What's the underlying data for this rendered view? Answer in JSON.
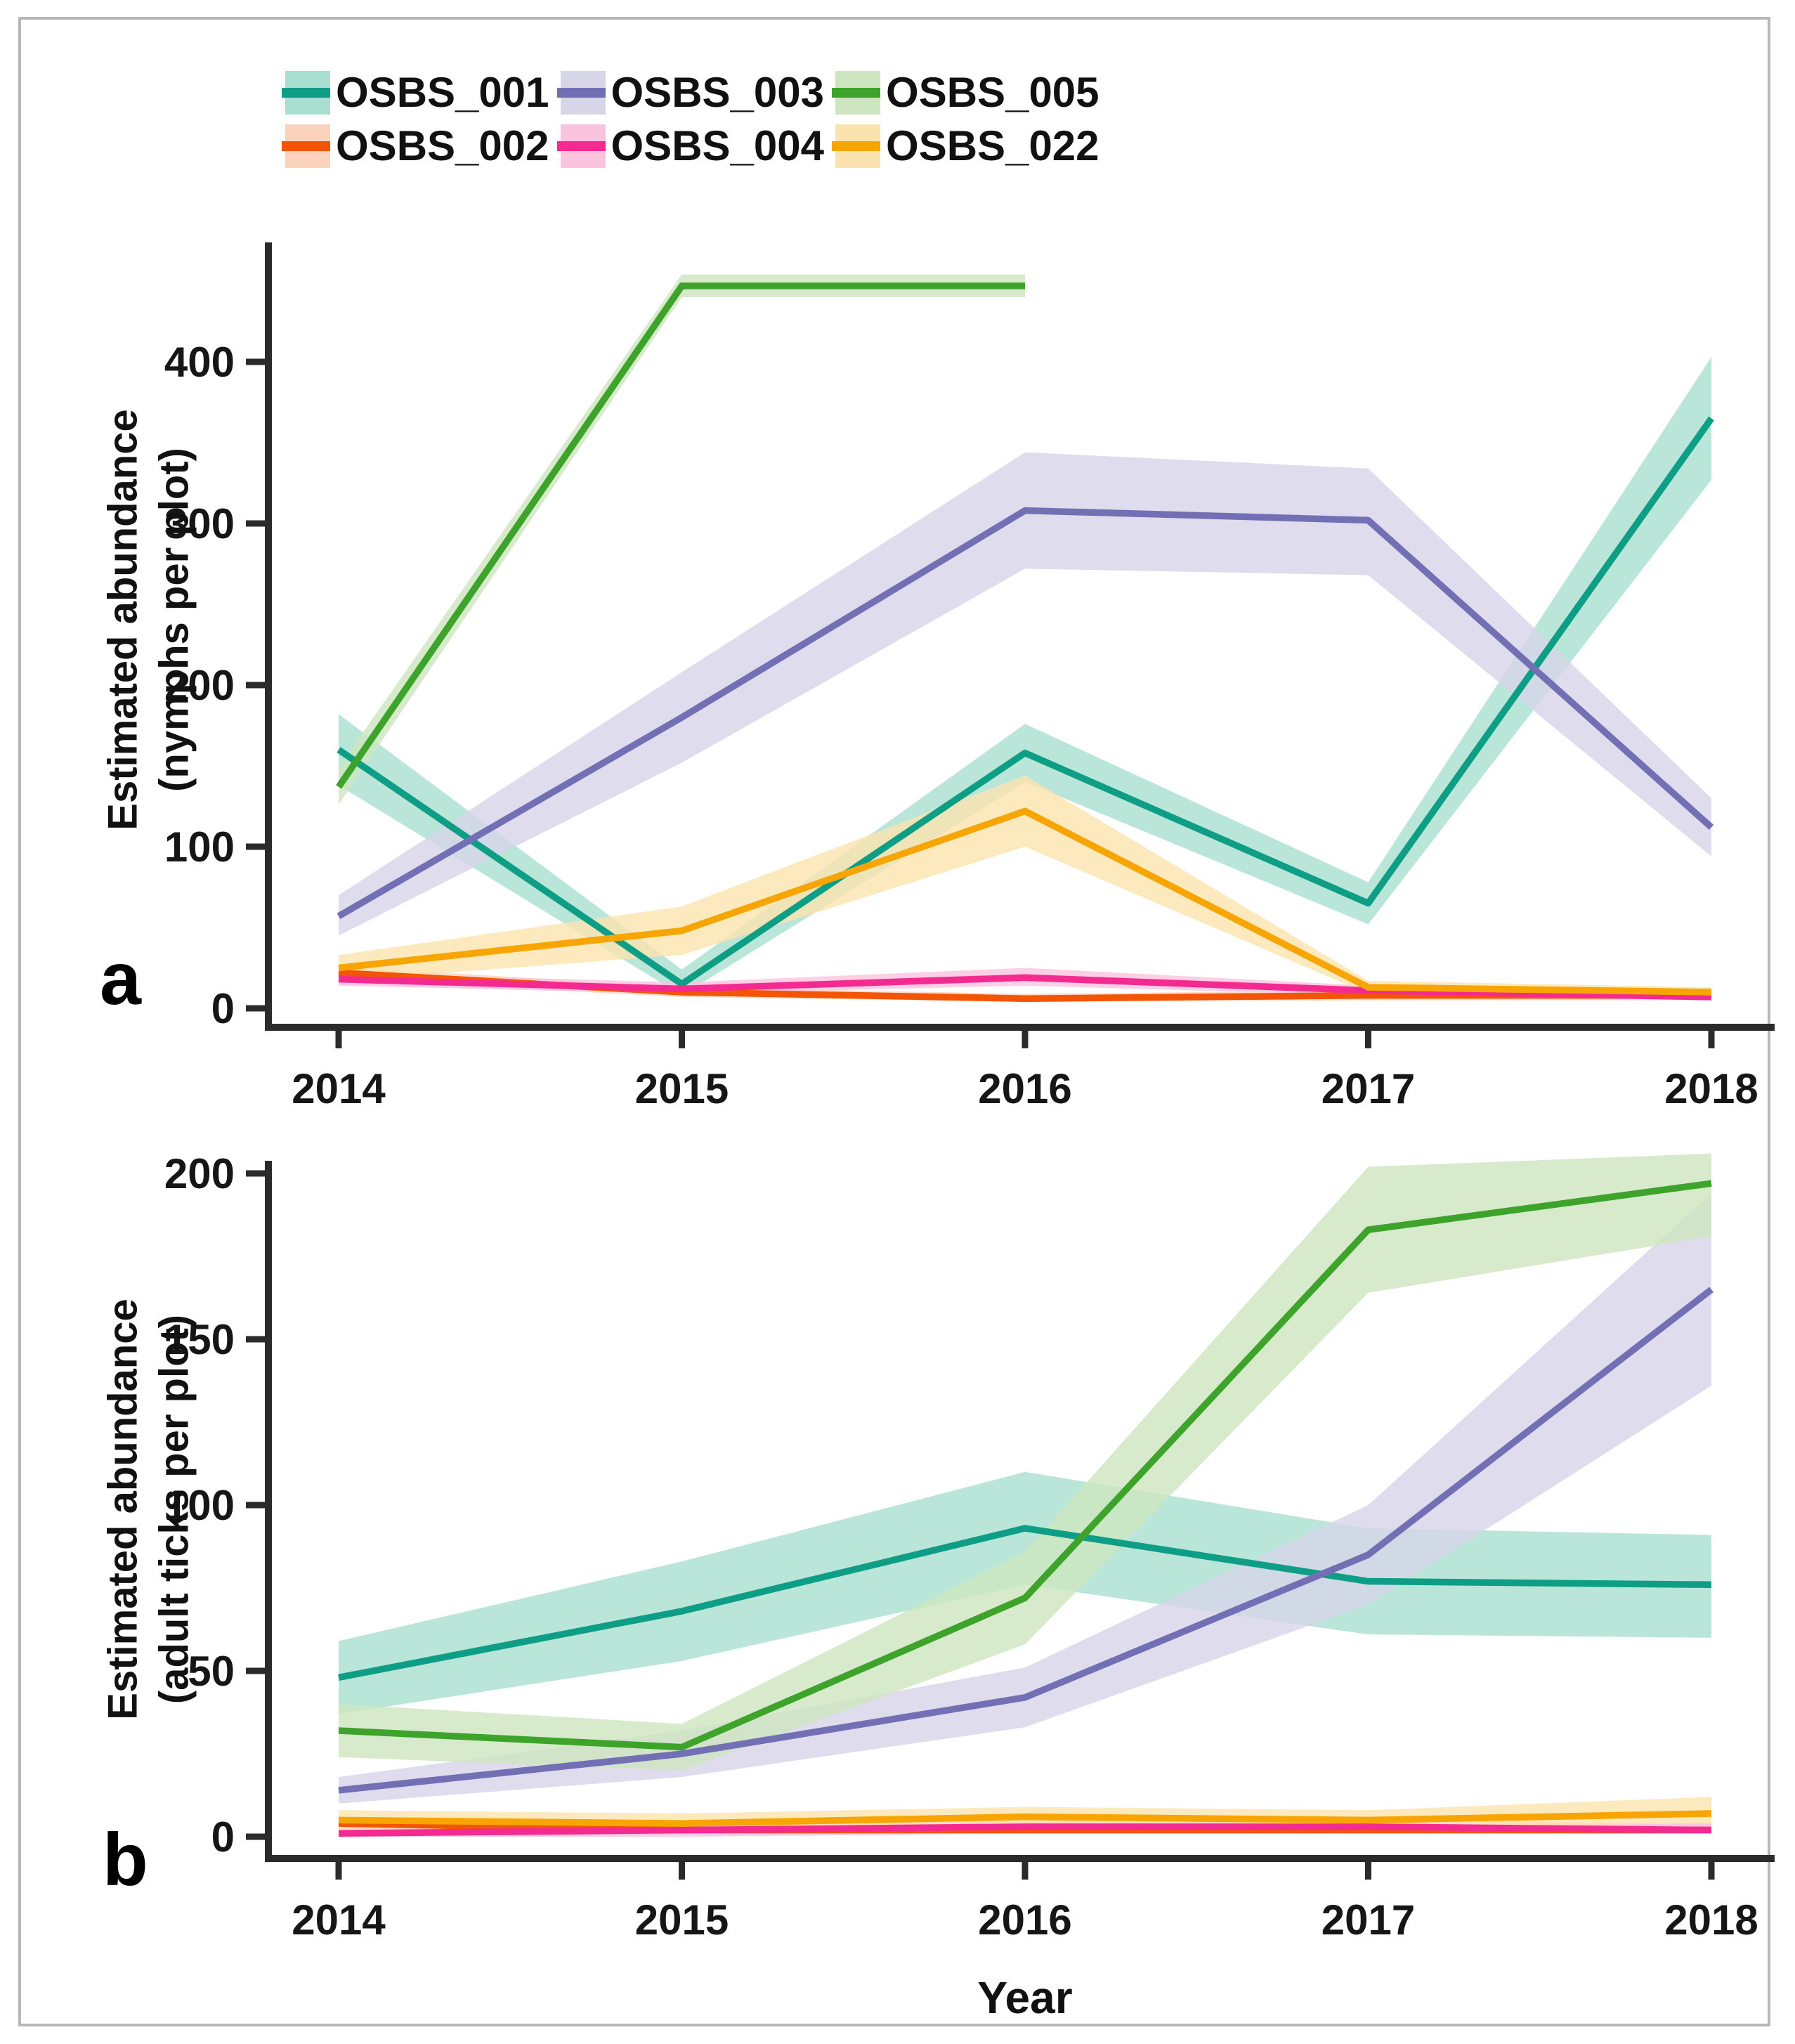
{
  "figure": {
    "background": "#ffffff",
    "frame_color": "#b8b8b8",
    "axis_color": "#2b2b2b",
    "text_color": "#111111"
  },
  "legend": {
    "position": "top",
    "items": [
      {
        "label": "OSBS_001",
        "line_color": "#0d9e85",
        "ribbon_color": "#a9dfd0"
      },
      {
        "label": "OSBS_002",
        "line_color": "#f25505",
        "ribbon_color": "#fbd2bb"
      },
      {
        "label": "OSBS_003",
        "line_color": "#736fb4",
        "ribbon_color": "#d7d5e8"
      },
      {
        "label": "OSBS_004",
        "line_color": "#f32b90",
        "ribbon_color": "#fbc3de"
      },
      {
        "label": "OSBS_005",
        "line_color": "#3ea32a",
        "ribbon_color": "#cde6bf"
      },
      {
        "label": "OSBS_022",
        "line_color": "#f7a503",
        "ribbon_color": "#fbe3ae"
      }
    ]
  },
  "chart_data": [
    {
      "type": "line",
      "panel_label": "a",
      "ylabel_line1": "Estimated abundance",
      "ylabel_line2": "(nymphs per plot)",
      "x": [
        2014,
        2015,
        2016,
        2017,
        2018
      ],
      "yticks": [
        0,
        100,
        200,
        300,
        400
      ],
      "ylim": [
        0,
        475
      ],
      "grid": false,
      "legend_position": "top",
      "series": [
        {
          "name": "OSBS_001",
          "color": "#0d9e85",
          "ribbon": "#a9dfd0",
          "values": [
            160,
            15,
            158,
            65,
            365
          ],
          "low": [
            138,
            8,
            140,
            52,
            327
          ],
          "high": [
            182,
            24,
            176,
            78,
            403
          ]
        },
        {
          "name": "OSBS_002",
          "color": "#f25505",
          "ribbon": "#fbd2bb",
          "values": [
            22,
            10,
            6,
            8,
            8
          ],
          "low": [
            18,
            7,
            4,
            5,
            5
          ],
          "high": [
            26,
            13,
            9,
            11,
            11
          ]
        },
        {
          "name": "OSBS_003",
          "color": "#736fb4",
          "ribbon": "#d7d5e8",
          "values": [
            57,
            180,
            308,
            302,
            112
          ],
          "low": [
            45,
            152,
            272,
            268,
            94
          ],
          "high": [
            70,
            208,
            344,
            334,
            130
          ]
        },
        {
          "name": "OSBS_004",
          "color": "#f32b90",
          "ribbon": "#fbc3de",
          "values": [
            18,
            12,
            19,
            11,
            7
          ],
          "low": [
            14,
            9,
            14,
            8,
            5
          ],
          "high": [
            22,
            16,
            25,
            14,
            10
          ]
        },
        {
          "name": "OSBS_005",
          "color": "#3ea32a",
          "ribbon": "#cde6bf",
          "values": [
            137,
            447,
            447,
            null,
            null
          ],
          "low": [
            126,
            440,
            440,
            null,
            null
          ],
          "high": [
            149,
            454,
            454,
            null,
            null
          ]
        },
        {
          "name": "OSBS_022",
          "color": "#f7a503",
          "ribbon": "#fbe3ae",
          "values": [
            25,
            48,
            122,
            13,
            10
          ],
          "low": [
            17,
            33,
            100,
            9,
            7
          ],
          "high": [
            33,
            63,
            144,
            17,
            13
          ]
        }
      ]
    },
    {
      "type": "line",
      "panel_label": "b",
      "ylabel_line1": "Estimated abundance",
      "ylabel_line2": "(adult ticks per plot)",
      "xlabel": "Year",
      "x": [
        2014,
        2015,
        2016,
        2017,
        2018
      ],
      "yticks": [
        0,
        50,
        100,
        150,
        200
      ],
      "ylim": [
        0,
        215
      ],
      "grid": false,
      "series": [
        {
          "name": "OSBS_001",
          "color": "#0d9e85",
          "ribbon": "#a9dfd0",
          "values": [
            48,
            68,
            93,
            77,
            76
          ],
          "low": [
            37,
            53,
            76,
            61,
            60
          ],
          "high": [
            59,
            83,
            110,
            93,
            91
          ]
        },
        {
          "name": "OSBS_002",
          "color": "#f25505",
          "ribbon": "#fbd2bb",
          "values": [
            4,
            2,
            2,
            2,
            2
          ],
          "low": [
            2,
            1,
            1,
            1,
            1
          ],
          "high": [
            6,
            4,
            4,
            4,
            4
          ]
        },
        {
          "name": "OSBS_003",
          "color": "#736fb4",
          "ribbon": "#d7d5e8",
          "values": [
            14,
            25,
            42,
            85,
            165
          ],
          "low": [
            10,
            18,
            33,
            70,
            136
          ],
          "high": [
            18,
            32,
            51,
            100,
            194
          ]
        },
        {
          "name": "OSBS_004",
          "color": "#f32b90",
          "ribbon": "#fbc3de",
          "values": [
            1,
            2,
            3,
            3,
            2
          ],
          "low": [
            0,
            0,
            1,
            1,
            1
          ],
          "high": [
            2,
            4,
            5,
            5,
            4
          ]
        },
        {
          "name": "OSBS_005",
          "color": "#3ea32a",
          "ribbon": "#cde6bf",
          "values": [
            32,
            27,
            72,
            183,
            197
          ],
          "low": [
            24,
            20,
            58,
            164,
            181
          ],
          "high": [
            40,
            34,
            86,
            202,
            206
          ]
        },
        {
          "name": "OSBS_022",
          "color": "#f7a503",
          "ribbon": "#fbe3ae",
          "values": [
            5,
            4,
            6,
            5,
            7
          ],
          "low": [
            3,
            2,
            3,
            3,
            4
          ],
          "high": [
            8,
            7,
            9,
            8,
            12
          ]
        }
      ]
    }
  ]
}
